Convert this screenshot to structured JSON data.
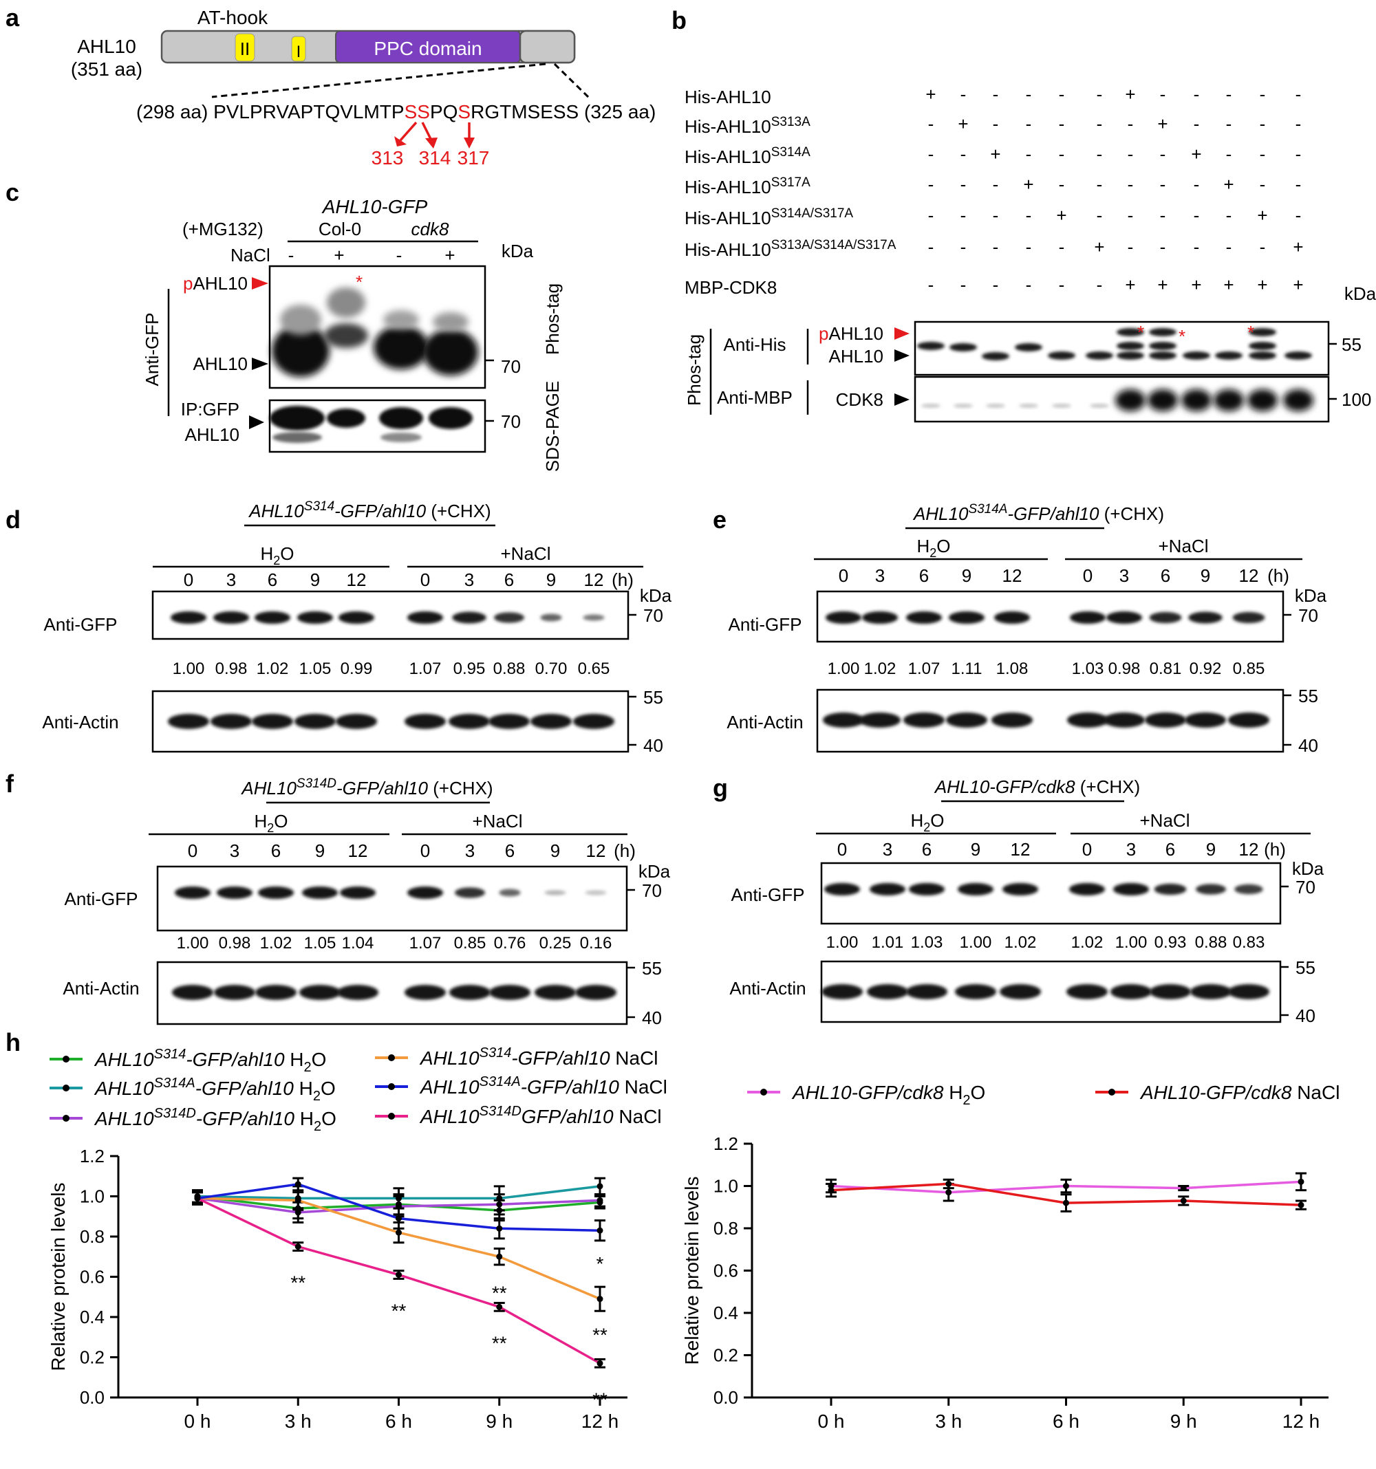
{
  "figure": {
    "colors": {
      "red": "#e41a1c",
      "purple": "#7b3fbf",
      "yellow": "#fff200",
      "domain_grey": "#c8c8c8"
    },
    "panel_labels": [
      "a",
      "b",
      "c",
      "d",
      "e",
      "f",
      "g",
      "h"
    ],
    "a": {
      "protein": "AHL10",
      "length": "(351 aa)",
      "at_hook": "AT-hook",
      "motif2": "II",
      "motif1": "I",
      "ppc": "PPC domain",
      "start": "(298 aa)",
      "end": "(325 aa)",
      "seq_parts": [
        "PVLPRVAPTQVLMTP",
        "SS",
        "PQ",
        "S",
        "RGTMSESS"
      ],
      "sites": [
        "313",
        "314",
        "317"
      ]
    },
    "b": {
      "rows": [
        {
          "base": "His-AHL10",
          "sup": "",
          "marks": "+-----+-----"
        },
        {
          "base": "His-AHL10",
          "sup": "S313A",
          "marks": "-+-----+----"
        },
        {
          "base": "His-AHL10",
          "sup": "S314A",
          "marks": "--+-----+---"
        },
        {
          "base": "His-AHL10",
          "sup": "S317A",
          "marks": "---+-----+--"
        },
        {
          "base": "His-AHL10",
          "sup": "S314A/S317A",
          "marks": "----+-----+-"
        },
        {
          "base": "His-AHL10",
          "sup": "S313A/S314A/S317A",
          "marks": "-----+-----+"
        },
        {
          "base": "MBP-CDK8",
          "sup": "",
          "marks": "------++++++"
        }
      ],
      "kda": "kDa",
      "phostag": "Phos-tag",
      "anti_his": "Anti-His",
      "anti_mbp": "Anti-MBP",
      "p": "p",
      "pahl10": "AHL10",
      "ahl10": "AHL10",
      "cdk8": "CDK8",
      "mw_top": "55",
      "mw_bottom": "100",
      "star": "*"
    },
    "c": {
      "title": "AHL10-GFP",
      "mg132": "(+MG132)",
      "col0": "Col-0",
      "cdk8": "cdk8",
      "nacl": "NaCl",
      "treat": [
        "-",
        "+",
        "-",
        "+"
      ],
      "kda": "kDa",
      "p": "p",
      "pahl10": "AHL10",
      "ahl10": "AHL10",
      "anti_gfp": "Anti-GFP",
      "ip_line1": "IP:GFP",
      "ip_line2": "AHL10",
      "mw1": "70",
      "mw2": "70",
      "phostag": "Phos-tag",
      "sds": "SDS-PAGE",
      "star": "*"
    },
    "blots": [
      {
        "label": "d",
        "title_a": "AHL10",
        "title_sup": "S314",
        "title_b": "-GFP/ahl10",
        "title_c": " (+CHX)",
        "h2o": "H",
        "two": "2",
        "o": "O",
        "nacl": "+NaCl",
        "times": [
          "0",
          "3",
          "6",
          "9",
          "12",
          "0",
          "3",
          "6",
          "9",
          "12"
        ],
        "unit": "(h)",
        "kda": "kDa",
        "gfp": "Anti-GFP",
        "actin": "Anti-Actin",
        "mw_gfp": "70",
        "mw_act_top": "55",
        "mw_act_bot": "40",
        "values": [
          "1.00",
          "0.98",
          "1.02",
          "1.05",
          "0.99",
          "1.07",
          "0.95",
          "0.88",
          "0.70",
          "0.65"
        ]
      },
      {
        "label": "e",
        "title_a": "AHL10",
        "title_sup": "S314A",
        "title_b": "-GFP/ahl10",
        "title_c": " (+CHX)",
        "h2o": "H",
        "two": "2",
        "o": "O",
        "nacl": "+NaCl",
        "times": [
          "0",
          "3",
          "6",
          "9",
          "12",
          "0",
          "3",
          "6",
          "9",
          "12"
        ],
        "unit": "(h)",
        "kda": "kDa",
        "gfp": "Anti-GFP",
        "actin": "Anti-Actin",
        "mw_gfp": "70",
        "mw_act_top": "55",
        "mw_act_bot": "40",
        "values": [
          "1.00",
          "1.02",
          "1.07",
          "1.11",
          "1.08",
          "1.03",
          "0.98",
          "0.81",
          "0.92",
          "0.85"
        ]
      },
      {
        "label": "f",
        "title_a": "AHL10",
        "title_sup": "S314D",
        "title_b": "-GFP/ahl10",
        "title_c": " (+CHX)",
        "h2o": "H",
        "two": "2",
        "o": "O",
        "nacl": "+NaCl",
        "times": [
          "0",
          "3",
          "6",
          "9",
          "12",
          "0",
          "3",
          "6",
          "9",
          "12"
        ],
        "unit": "(h)",
        "kda": "kDa",
        "gfp": "Anti-GFP",
        "actin": "Anti-Actin",
        "mw_gfp": "70",
        "mw_act_top": "55",
        "mw_act_bot": "40",
        "values": [
          "1.00",
          "0.98",
          "1.02",
          "1.05",
          "1.04",
          "1.07",
          "0.85",
          "0.76",
          "0.25",
          "0.16"
        ]
      },
      {
        "label": "g",
        "title_a": "AHL10-GFP/cdk8",
        "title_sup": "",
        "title_b": "",
        "title_c": " (+CHX)",
        "h2o": "H",
        "two": "2",
        "o": "O",
        "nacl": "+NaCl",
        "times": [
          "0",
          "3",
          "6",
          "9",
          "12",
          "0",
          "3",
          "6",
          "9",
          "12"
        ],
        "unit": "(h)",
        "kda": "kDa",
        "gfp": "Anti-GFP",
        "actin": "Anti-Actin",
        "mw_gfp": "70",
        "mw_act_top": "55",
        "mw_act_bot": "40",
        "values": [
          "1.00",
          "1.01",
          "1.03",
          "1.00",
          "1.02",
          "1.02",
          "1.00",
          "0.93",
          "0.88",
          "0.83"
        ]
      }
    ]
  },
  "chart_data": [
    {
      "type": "line",
      "panel": "h-left",
      "title": "",
      "xlabel": "",
      "ylabel": "Relative protein levels",
      "categories": [
        "0 h",
        "3 h",
        "6 h",
        "9 h",
        "12 h"
      ],
      "ylim": [
        0,
        1.2
      ],
      "yticks": [
        "0.0",
        "0.2",
        "0.4",
        "0.6",
        "0.8",
        "1.0",
        "1.2"
      ],
      "series": [
        {
          "name_a": "AHL10",
          "sup": "S314",
          "name_b": "-GFP/ahl10",
          "name_c": " H",
          "sub": "2",
          "name_d": "O",
          "color": "#1fae2a",
          "values": [
            1.0,
            0.94,
            0.96,
            0.93,
            0.97
          ],
          "errors": [
            0.03,
            0.05,
            0.05,
            0.05,
            0.03
          ]
        },
        {
          "name_a": "AHL10",
          "sup": "S314A",
          "name_b": "-GFP/ahl10",
          "name_c": " H",
          "sub": "2",
          "name_d": "O",
          "color": "#1a9aa0",
          "values": [
            1.0,
            0.99,
            0.99,
            0.99,
            1.05
          ],
          "errors": [
            0.03,
            0.06,
            0.05,
            0.06,
            0.04
          ]
        },
        {
          "name_a": "AHL10",
          "sup": "S314D",
          "name_b": "-GFP/ahl10",
          "name_c": " H",
          "sub": "2",
          "name_d": "O",
          "color": "#a54ad6",
          "values": [
            0.99,
            0.92,
            0.95,
            0.96,
            0.98
          ],
          "errors": [
            0.03,
            0.05,
            0.05,
            0.05,
            0.03
          ]
        },
        {
          "name_a": "AHL10",
          "sup": "S314",
          "name_b": "-GFP/ahl10",
          "name_c": " NaCl",
          "sub": "",
          "name_d": "",
          "color": "#f39a3c",
          "values": [
            0.99,
            0.98,
            0.82,
            0.7,
            0.49
          ],
          "errors": [
            0.03,
            0.04,
            0.05,
            0.04,
            0.06
          ]
        },
        {
          "name_a": "AHL10",
          "sup": "S314A",
          "name_b": "-GFP/ahl10",
          "name_c": " NaCl",
          "sub": "",
          "name_d": "",
          "color": "#1720d8",
          "values": [
            0.99,
            1.06,
            0.89,
            0.84,
            0.83
          ],
          "errors": [
            0.03,
            0.03,
            0.05,
            0.05,
            0.05
          ]
        },
        {
          "name_a": "AHL10",
          "sup": "S314D",
          "name_b": "GFP/ahl10",
          "name_c": " NaCl",
          "sub": "",
          "name_d": "",
          "color": "#e8218a",
          "values": [
            0.99,
            0.75,
            0.61,
            0.45,
            0.17
          ],
          "errors": [
            0.03,
            0.02,
            0.02,
            0.02,
            0.02
          ]
        }
      ],
      "annotations": [
        {
          "x": "3 h",
          "text": "**"
        },
        {
          "x": "6 h",
          "text": "**"
        },
        {
          "x": "9 h",
          "text": "**"
        },
        {
          "x": "9 h",
          "text": "**"
        },
        {
          "x": "12 h",
          "text": "*"
        },
        {
          "x": "12 h",
          "text": "**"
        },
        {
          "x": "12 h",
          "text": "**"
        }
      ]
    },
    {
      "type": "line",
      "panel": "h-right",
      "title": "",
      "xlabel": "",
      "ylabel": "Relative protein levels",
      "categories": [
        "0 h",
        "3 h",
        "6 h",
        "9 h",
        "12 h"
      ],
      "ylim": [
        0,
        1.2
      ],
      "yticks": [
        "0.0",
        "0.2",
        "0.4",
        "0.6",
        "0.8",
        "1.0",
        "1.2"
      ],
      "series": [
        {
          "name_a": "AHL10-GFP/cdk8",
          "sup": "",
          "name_b": "",
          "name_c": " H",
          "sub": "2",
          "name_d": "O",
          "color": "#e55ce0",
          "values": [
            1.0,
            0.97,
            1.0,
            0.99,
            1.02
          ],
          "errors": [
            0.03,
            0.04,
            0.03,
            0.01,
            0.04
          ]
        },
        {
          "name_a": "AHL10-GFP/cdk8",
          "sup": "",
          "name_b": "",
          "name_c": " NaCl",
          "sub": "",
          "name_d": "",
          "color": "#e41a1c",
          "values": [
            0.98,
            1.01,
            0.92,
            0.93,
            0.91
          ],
          "errors": [
            0.03,
            0.02,
            0.04,
            0.02,
            0.02
          ]
        }
      ],
      "annotations": []
    }
  ]
}
